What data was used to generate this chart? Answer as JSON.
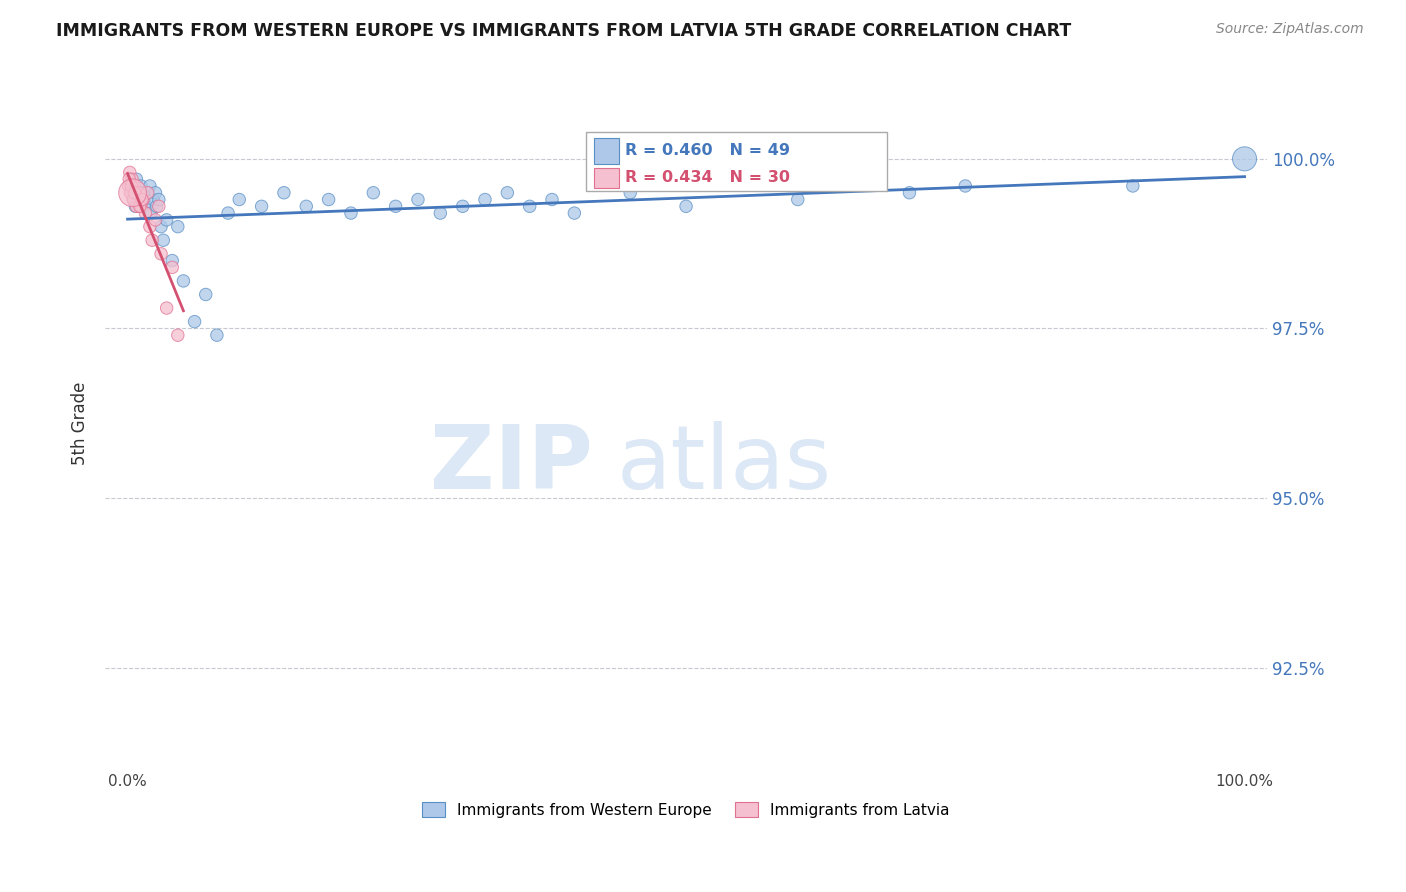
{
  "title": "IMMIGRANTS FROM WESTERN EUROPE VS IMMIGRANTS FROM LATVIA 5TH GRADE CORRELATION CHART",
  "source": "Source: ZipAtlas.com",
  "ylabel": "5th Grade",
  "ytick_values": [
    100.0,
    97.5,
    95.0,
    92.5
  ],
  "legend_blue_label": "Immigrants from Western Europe",
  "legend_pink_label": "Immigrants from Latvia",
  "legend_blue_r": "R = 0.460",
  "legend_blue_n": "N = 49",
  "legend_pink_r": "R = 0.434",
  "legend_pink_n": "N = 30",
  "blue_color": "#adc8e8",
  "blue_edge_color": "#5a8fc4",
  "blue_line_color": "#4477bb",
  "pink_color": "#f5c0d0",
  "pink_edge_color": "#e07090",
  "pink_line_color": "#d45070",
  "blue_x": [
    0.3,
    0.5,
    0.7,
    0.8,
    1.0,
    1.2,
    1.3,
    1.5,
    1.6,
    1.8,
    2.0,
    2.1,
    2.3,
    2.5,
    2.6,
    2.8,
    3.0,
    3.2,
    3.5,
    4.0,
    4.5,
    5.0,
    6.0,
    7.0,
    8.0,
    9.0,
    10.0,
    12.0,
    14.0,
    16.0,
    18.0,
    20.0,
    22.0,
    24.0,
    26.0,
    28.0,
    30.0,
    32.0,
    34.0,
    36.0,
    38.0,
    40.0,
    45.0,
    50.0,
    60.0,
    70.0,
    75.0,
    90.0,
    100.0
  ],
  "blue_y": [
    99.6,
    99.5,
    99.3,
    99.7,
    99.4,
    99.6,
    99.5,
    99.4,
    99.3,
    99.5,
    99.6,
    99.2,
    99.4,
    99.5,
    99.3,
    99.4,
    99.0,
    98.8,
    99.1,
    98.5,
    99.0,
    98.2,
    97.6,
    98.0,
    97.4,
    99.2,
    99.4,
    99.3,
    99.5,
    99.3,
    99.4,
    99.2,
    99.5,
    99.3,
    99.4,
    99.2,
    99.3,
    99.4,
    99.5,
    99.3,
    99.4,
    99.2,
    99.5,
    99.3,
    99.4,
    99.5,
    99.6,
    99.6,
    100.0
  ],
  "blue_sizes": [
    80,
    80,
    80,
    80,
    80,
    80,
    80,
    80,
    80,
    80,
    80,
    80,
    80,
    80,
    80,
    80,
    80,
    80,
    80,
    80,
    80,
    80,
    80,
    80,
    80,
    80,
    80,
    80,
    80,
    80,
    80,
    80,
    80,
    80,
    80,
    80,
    80,
    80,
    80,
    80,
    80,
    80,
    80,
    80,
    80,
    80,
    80,
    80,
    300
  ],
  "pink_x": [
    0.1,
    0.2,
    0.3,
    0.4,
    0.5,
    0.6,
    0.7,
    0.8,
    0.9,
    1.0,
    1.2,
    1.4,
    1.6,
    1.8,
    2.0,
    2.2,
    2.5,
    2.8,
    3.0,
    3.5,
    4.0,
    4.5,
    0.15,
    0.25,
    0.35,
    0.55,
    0.65,
    1.1,
    1.3,
    0.45
  ],
  "pink_y": [
    99.6,
    99.8,
    99.5,
    99.7,
    99.4,
    99.6,
    99.5,
    99.3,
    99.4,
    99.5,
    99.3,
    99.4,
    99.2,
    99.5,
    99.0,
    98.8,
    99.1,
    99.3,
    98.6,
    97.8,
    98.4,
    97.4,
    99.7,
    99.5,
    99.6,
    99.4,
    99.5,
    99.3,
    99.4,
    99.5
  ],
  "pink_sizes": [
    80,
    80,
    80,
    80,
    80,
    80,
    80,
    80,
    80,
    80,
    80,
    80,
    80,
    80,
    80,
    80,
    80,
    80,
    80,
    80,
    80,
    80,
    80,
    80,
    80,
    80,
    80,
    80,
    80,
    400
  ]
}
